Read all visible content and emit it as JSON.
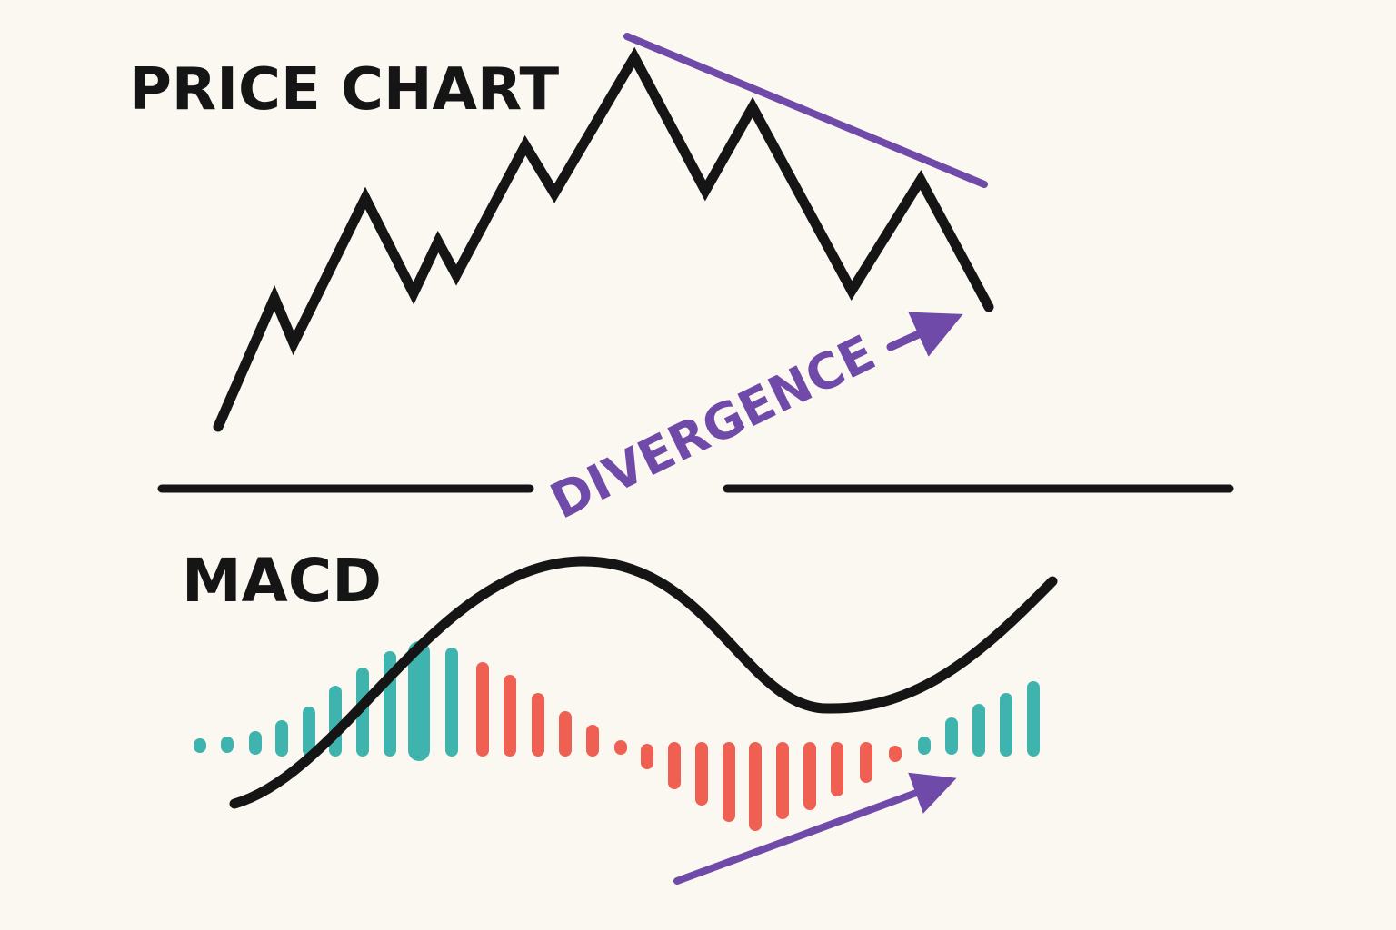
{
  "price_label": "PRICE CHART",
  "macd_label": "MACD",
  "divergence_label": "DIVERGENCE"
}
